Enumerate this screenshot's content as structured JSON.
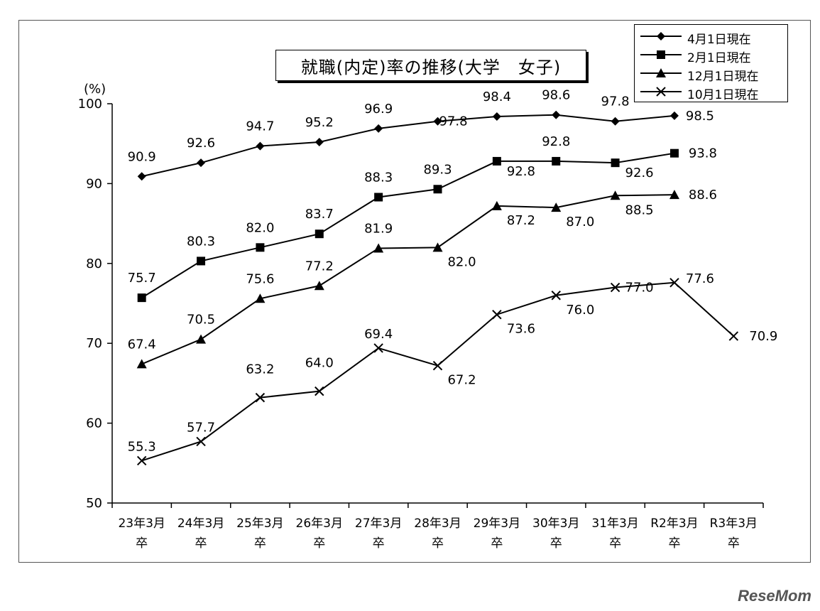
{
  "chart_data": {
    "type": "line",
    "title": "就職(内定)率の推移(大学　女子)",
    "ylabel": "(%)",
    "ylim": [
      50,
      100
    ],
    "yticks": [
      50,
      60,
      70,
      80,
      90,
      100
    ],
    "categories": [
      "23年3月卒",
      "24年3月卒",
      "25年3月卒",
      "26年3月卒",
      "27年3月卒",
      "28年3月卒",
      "29年3月卒",
      "30年3月卒",
      "31年3月卒",
      "R2年3月卒",
      "R3年3月卒"
    ],
    "category_lines": [
      [
        "23年3月",
        "卒"
      ],
      [
        "24年3月",
        "卒"
      ],
      [
        "25年3月",
        "卒"
      ],
      [
        "26年3月",
        "卒"
      ],
      [
        "27年3月",
        "卒"
      ],
      [
        "28年3月",
        "卒"
      ],
      [
        "29年3月",
        "卒"
      ],
      [
        "30年3月",
        "卒"
      ],
      [
        "31年3月",
        "卒"
      ],
      [
        "R2年3月",
        "卒"
      ],
      [
        "R3年3月",
        "卒"
      ]
    ],
    "series": [
      {
        "name": "4月1日現在",
        "marker": "diamond",
        "values": [
          90.9,
          92.6,
          94.7,
          95.2,
          96.9,
          97.8,
          98.4,
          98.6,
          97.8,
          98.5,
          null
        ],
        "labels": [
          "90.9",
          "92.6",
          "94.7",
          "95.2",
          "96.9",
          "97.8",
          "98.4",
          "98.6",
          "97.8",
          "98.5",
          null
        ]
      },
      {
        "name": "2月1日現在",
        "marker": "square",
        "values": [
          75.7,
          80.3,
          82.0,
          83.7,
          88.3,
          89.3,
          92.8,
          92.8,
          92.6,
          93.8,
          null
        ],
        "labels": [
          "75.7",
          "80.3",
          "82.0",
          "83.7",
          "88.3",
          "89.3",
          "92.8",
          "92.8",
          "92.6",
          "93.8",
          null
        ]
      },
      {
        "name": "12月1日現在",
        "marker": "triangle",
        "values": [
          67.4,
          70.5,
          75.6,
          77.2,
          81.9,
          82.0,
          87.2,
          87.0,
          88.5,
          88.6,
          null
        ],
        "labels": [
          "67.4",
          "70.5",
          "75.6",
          "77.2",
          "81.9",
          "82.0",
          "87.2",
          "87.0",
          "88.5",
          "88.6",
          null
        ]
      },
      {
        "name": "10月1日現在",
        "marker": "cross",
        "values": [
          55.3,
          57.7,
          63.2,
          64.0,
          69.4,
          67.2,
          73.6,
          76.0,
          77.0,
          77.6,
          70.9
        ],
        "labels": [
          "55.3",
          "57.7",
          "63.2",
          "64.0",
          "69.4",
          "67.2",
          "73.6",
          "76.0",
          "77.0",
          "77.6",
          "70.9"
        ]
      }
    ],
    "legend_position": "top-right",
    "grid": false
  },
  "watermark": "ReseMom"
}
